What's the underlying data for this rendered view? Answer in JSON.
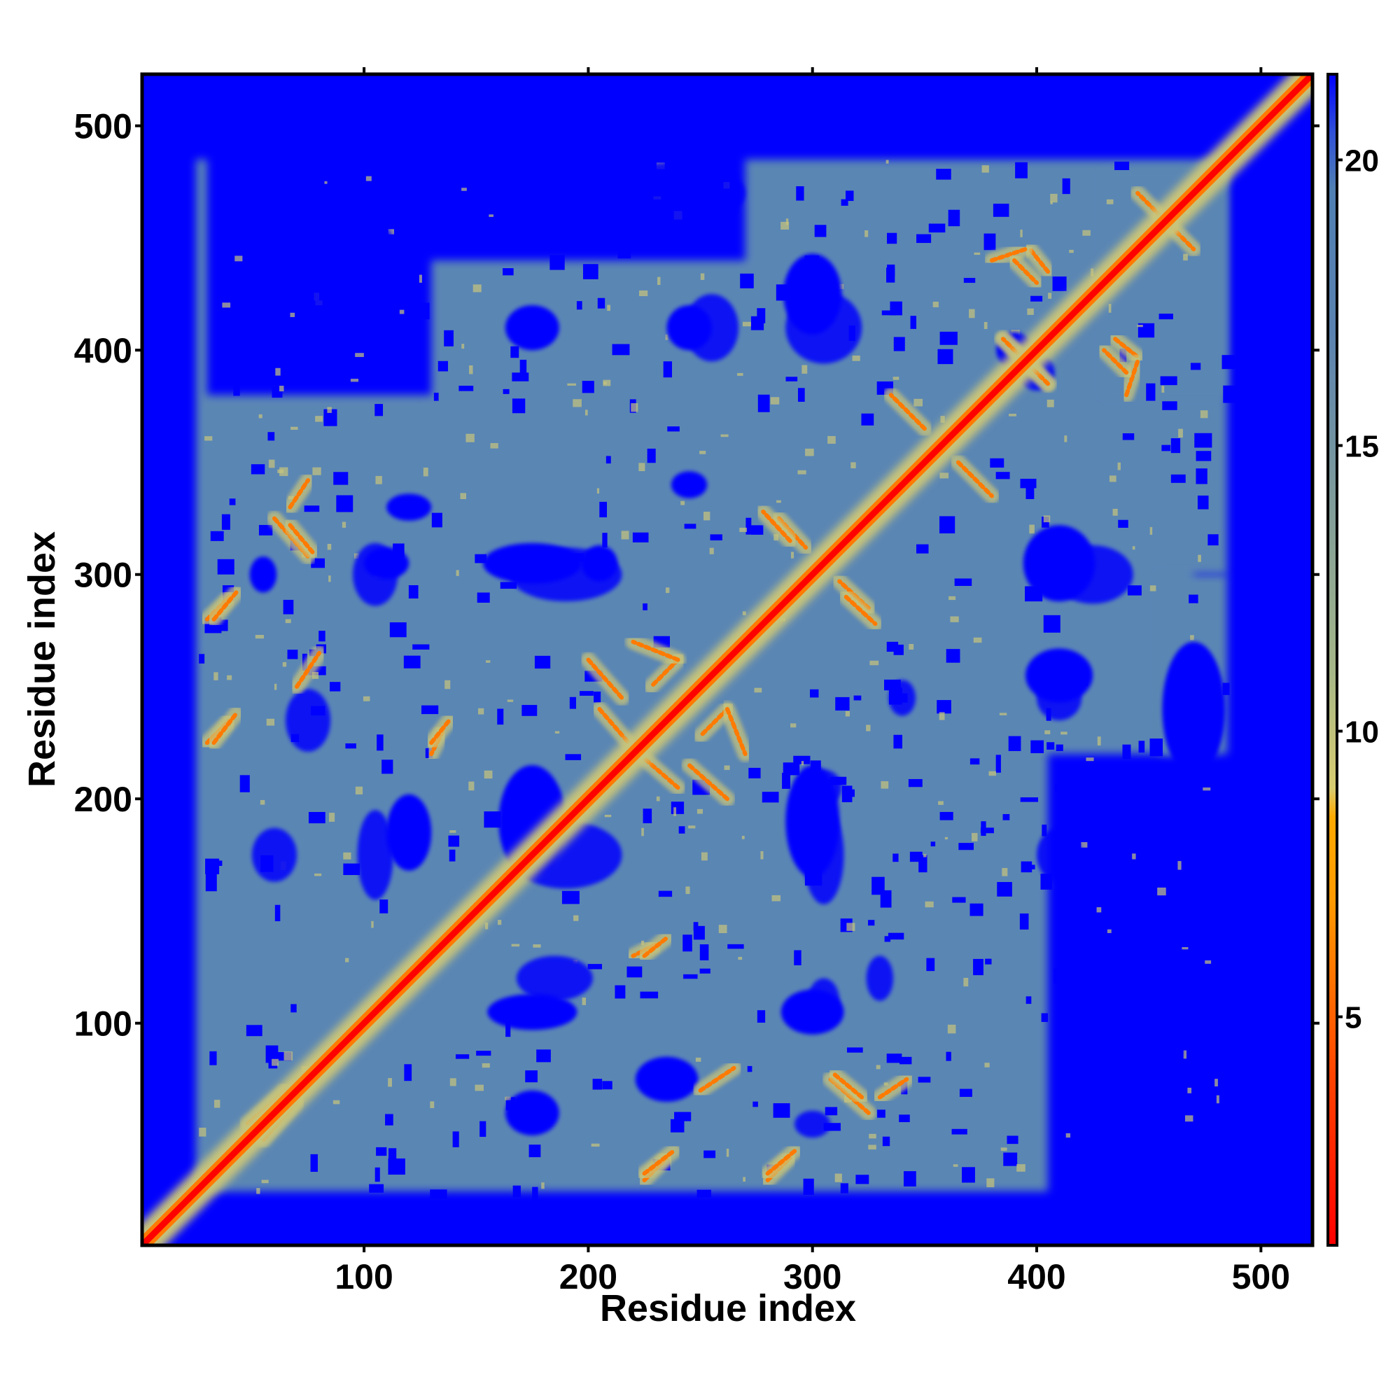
{
  "chart_data": {
    "type": "heatmap",
    "title": "",
    "xlabel": "Residue index",
    "ylabel": "Residue index",
    "xlim": [
      1,
      523
    ],
    "ylim": [
      1,
      523
    ],
    "x_ticks": [
      100,
      200,
      300,
      400,
      500
    ],
    "y_ticks": [
      100,
      200,
      300,
      400,
      500
    ],
    "top_ticks": [
      100,
      200,
      300,
      400,
      500
    ],
    "colorbar": {
      "range": [
        1,
        21.5
      ],
      "ticks": [
        5,
        10,
        15,
        20
      ],
      "stops": [
        {
          "value": 1,
          "color": "#ff0000"
        },
        {
          "value": 4,
          "color": "#ff4400"
        },
        {
          "value": 7,
          "color": "#ff9900"
        },
        {
          "value": 8.5,
          "color": "#ffaa00"
        },
        {
          "value": 9,
          "color": "#d8cc70"
        },
        {
          "value": 11,
          "color": "#a6b787"
        },
        {
          "value": 14,
          "color": "#7f9c9a"
        },
        {
          "value": 17,
          "color": "#5a82b0"
        },
        {
          "value": 19.5,
          "color": "#4f7fb3"
        },
        {
          "value": 20.5,
          "color": "#2f4fd8"
        },
        {
          "value": 21.5,
          "color": "#0000ff"
        }
      ]
    },
    "colors": {
      "far": "#0000ff",
      "mid": "#5a86b4",
      "near": "#c8c47a",
      "contact": "#ff7a00",
      "diagonal": "#ff0000"
    },
    "diagonal": {
      "start": 1,
      "end": 523
    },
    "contact_envelope": {
      "x_range": [
        25,
        485
      ],
      "y_range": [
        25,
        485
      ]
    },
    "far_blobs": [
      {
        "x": 300,
        "y": 425,
        "rx": 13,
        "ry": 18
      },
      {
        "x": 175,
        "y": 410,
        "rx": 12,
        "ry": 10
      },
      {
        "x": 245,
        "y": 410,
        "rx": 10,
        "ry": 10
      },
      {
        "x": 410,
        "y": 305,
        "rx": 16,
        "ry": 17
      },
      {
        "x": 175,
        "y": 305,
        "rx": 22,
        "ry": 9
      },
      {
        "x": 120,
        "y": 330,
        "rx": 10,
        "ry": 6
      },
      {
        "x": 110,
        "y": 305,
        "rx": 10,
        "ry": 7
      },
      {
        "x": 205,
        "y": 305,
        "rx": 8,
        "ry": 8
      },
      {
        "x": 120,
        "y": 185,
        "rx": 10,
        "ry": 17
      },
      {
        "x": 175,
        "y": 190,
        "rx": 15,
        "ry": 25
      },
      {
        "x": 300,
        "y": 190,
        "rx": 12,
        "ry": 25
      },
      {
        "x": 175,
        "y": 105,
        "rx": 20,
        "ry": 8
      },
      {
        "x": 300,
        "y": 105,
        "rx": 14,
        "ry": 10
      },
      {
        "x": 410,
        "y": 255,
        "rx": 15,
        "ry": 12
      },
      {
        "x": 390,
        "y": 400,
        "rx": 8,
        "ry": 8
      },
      {
        "x": 55,
        "y": 300,
        "rx": 6,
        "ry": 8
      },
      {
        "x": 245,
        "y": 340,
        "rx": 8,
        "ry": 6
      },
      {
        "x": 235,
        "y": 75,
        "rx": 14,
        "ry": 10
      },
      {
        "x": 175,
        "y": 60,
        "rx": 12,
        "ry": 10
      },
      {
        "x": 440,
        "y": 90,
        "rx": 25,
        "ry": 25
      },
      {
        "x": 470,
        "y": 240,
        "rx": 14,
        "ry": 30
      }
    ],
    "contact_lines": [
      {
        "x1": 385,
        "y1": 405,
        "x2": 405,
        "y2": 385
      },
      {
        "x1": 385,
        "y1": 385,
        "x2": 405,
        "y2": 405
      },
      {
        "x1": 435,
        "y1": 405,
        "x2": 445,
        "y2": 397
      },
      {
        "x1": 380,
        "y1": 440,
        "x2": 395,
        "y2": 445
      },
      {
        "x1": 285,
        "y1": 325,
        "x2": 297,
        "y2": 312
      },
      {
        "x1": 315,
        "y1": 290,
        "x2": 328,
        "y2": 278
      },
      {
        "x1": 60,
        "y1": 325,
        "x2": 75,
        "y2": 308
      },
      {
        "x1": 30,
        "y1": 280,
        "x2": 40,
        "y2": 290
      },
      {
        "x1": 30,
        "y1": 225,
        "x2": 40,
        "y2": 235
      },
      {
        "x1": 135,
        "y1": 230,
        "x2": 130,
        "y2": 220
      },
      {
        "x1": 225,
        "y1": 130,
        "x2": 235,
        "y2": 138
      },
      {
        "x1": 225,
        "y1": 33,
        "x2": 238,
        "y2": 43
      },
      {
        "x1": 280,
        "y1": 33,
        "x2": 292,
        "y2": 43
      },
      {
        "x1": 330,
        "y1": 67,
        "x2": 342,
        "y2": 75
      },
      {
        "x1": 310,
        "y1": 77,
        "x2": 322,
        "y2": 67
      },
      {
        "x1": 365,
        "y1": 350,
        "x2": 380,
        "y2": 335
      },
      {
        "x1": 390,
        "y1": 440,
        "x2": 400,
        "y2": 430
      },
      {
        "x1": 200,
        "y1": 262,
        "x2": 215,
        "y2": 245
      },
      {
        "x1": 240,
        "y1": 262,
        "x2": 228,
        "y2": 250
      },
      {
        "x1": 240,
        "y1": 205,
        "x2": 225,
        "y2": 218
      },
      {
        "x1": 262,
        "y1": 240,
        "x2": 270,
        "y2": 220
      },
      {
        "x1": 70,
        "y1": 65,
        "x2": 55,
        "y2": 48
      },
      {
        "x1": 250,
        "y1": 70,
        "x2": 265,
        "y2": 80
      },
      {
        "x1": 455,
        "y1": 460,
        "x2": 470,
        "y2": 445
      }
    ]
  }
}
